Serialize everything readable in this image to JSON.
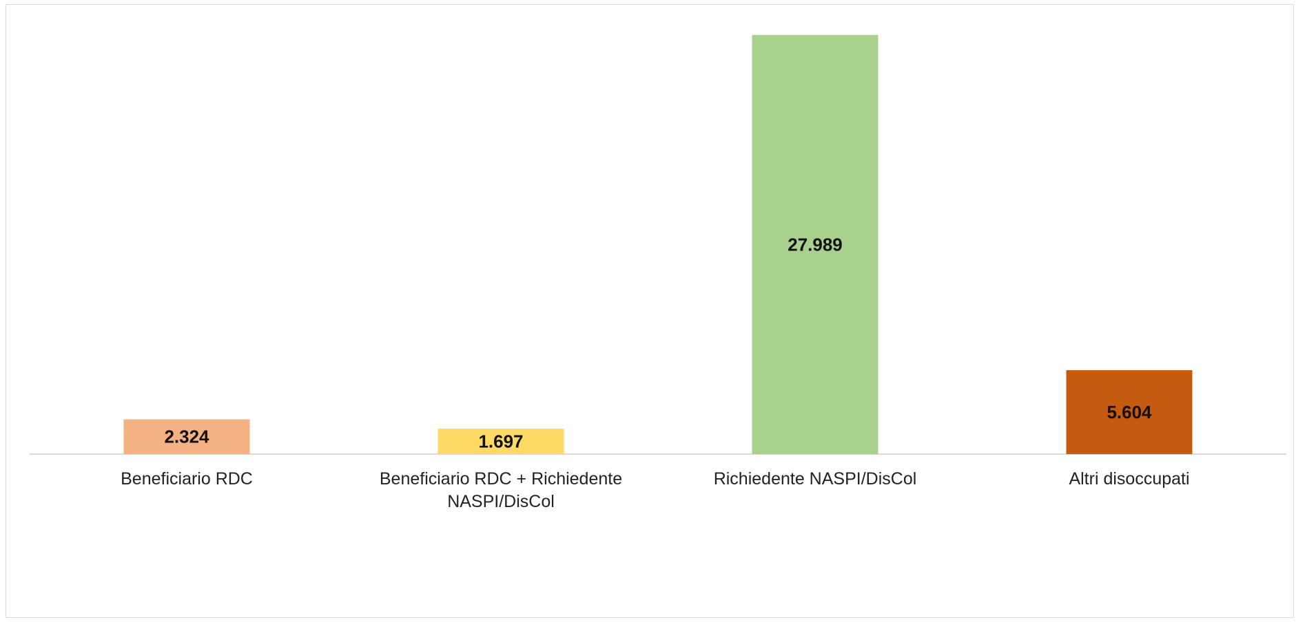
{
  "chart_data": {
    "type": "bar",
    "categories": [
      [
        "Beneficiario RDC"
      ],
      [
        "Beneficiario RDC + Richiedente",
        "NASPI/DisCol"
      ],
      [
        "Richiedente NASPI/DisCol"
      ],
      [
        "Altri disoccupati"
      ]
    ],
    "values": [
      2324,
      1697,
      27989,
      5604
    ],
    "value_labels": [
      "2.324",
      "1.697",
      "27.989",
      "5.604"
    ],
    "colors": [
      "#f4b183",
      "#ffd966",
      "#a9d18e",
      "#c55a11"
    ],
    "title": "",
    "xlabel": "",
    "ylabel": "",
    "ylim": [
      0,
      30000
    ],
    "grid": false,
    "legend": "none"
  }
}
